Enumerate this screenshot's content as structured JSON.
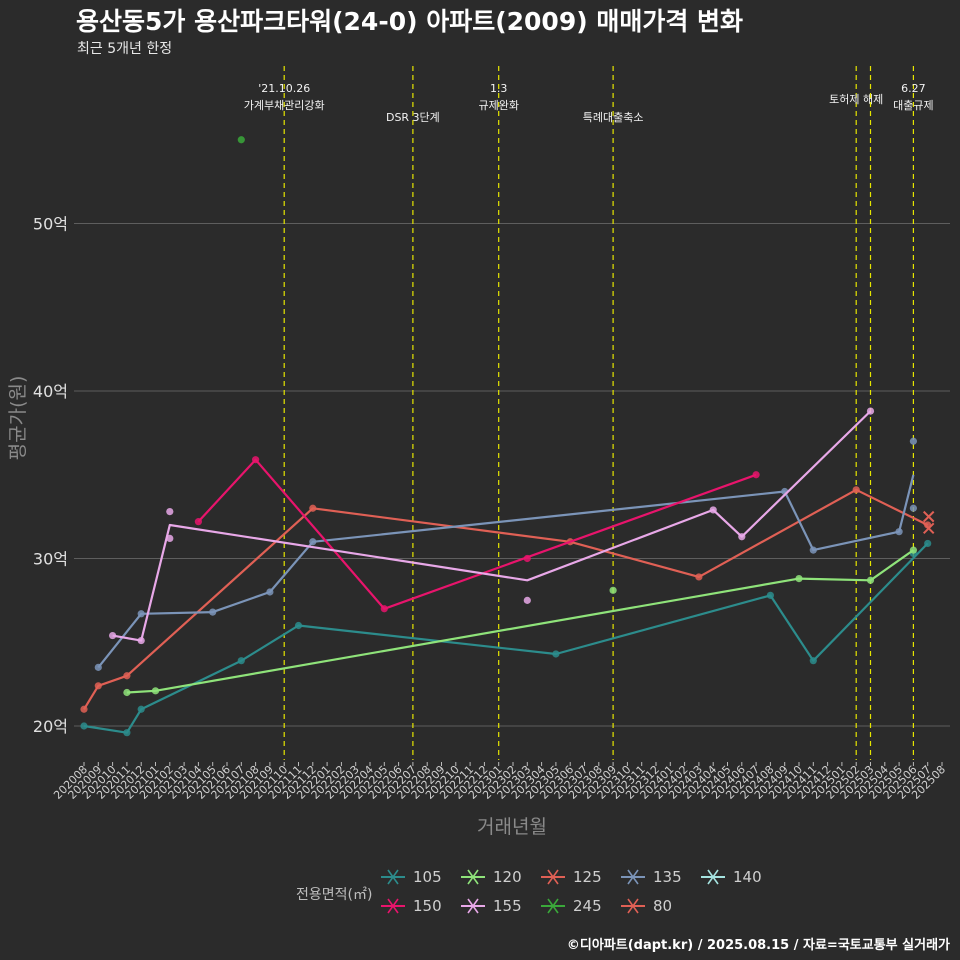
{
  "title": "용산동5가 용산파크타워(24-0) 아파트(2009) 매매가격 변화",
  "subtitle": "최근 5개년 한정",
  "caption": "©디아파트(dapt.kr) / 2025.08.15 / 자료=국토교통부 실거래가",
  "chart_data": {
    "type": "line",
    "xlabel": "거래년월",
    "ylabel": "평균가(원)",
    "x": [
      "202008",
      "202009",
      "202010",
      "202011",
      "202012",
      "202101",
      "202102",
      "202103",
      "202104",
      "202105",
      "202106",
      "202107",
      "202108",
      "202109",
      "202110",
      "202111",
      "202112",
      "202201",
      "202202",
      "202203",
      "202204",
      "202205",
      "202206",
      "202207",
      "202208",
      "202209",
      "202210",
      "202211",
      "202212",
      "202301",
      "202302",
      "202303",
      "202304",
      "202305",
      "202306",
      "202307",
      "202308",
      "202309",
      "202310",
      "202311",
      "202312",
      "202401",
      "202402",
      "202403",
      "202404",
      "202405",
      "202406",
      "202407",
      "202408",
      "202409",
      "202410",
      "202411",
      "202412",
      "202501",
      "202502",
      "202503",
      "202504",
      "202505",
      "202506",
      "202507",
      "202508"
    ],
    "ylim": [
      18,
      58
    ],
    "yticks": [
      20,
      30,
      40,
      50
    ],
    "ytick_labels": [
      "20억",
      "30억",
      "40억",
      "50억"
    ],
    "grid": "horizontal",
    "legend_position": "bottom",
    "legend_title": "전용면적(㎡)",
    "events": [
      {
        "x": "202110",
        "lines": [
          "'21.10.26",
          "가계부채관리강화"
        ]
      },
      {
        "x": "202207",
        "lines": [
          "DSR 3단계"
        ]
      },
      {
        "x": "202301",
        "lines": [
          "1.3",
          "규제완화"
        ]
      },
      {
        "x": "202309",
        "lines": [
          "특례대출축소"
        ]
      },
      {
        "x": "202502",
        "lines": [
          "토허제 해제"
        ]
      },
      {
        "x": "202503",
        "lines": [
          ""
        ]
      },
      {
        "x": "202506",
        "lines": [
          "6.27",
          "대출규제"
        ]
      }
    ],
    "series": [
      {
        "name": "105",
        "color": "#2c8c8c",
        "line": [
          [
            "202008",
            20.0
          ],
          [
            "202011",
            19.6
          ],
          [
            "202012",
            21.0
          ],
          [
            "202107",
            23.9
          ],
          [
            "202111",
            26.0
          ],
          [
            "202305",
            24.3
          ],
          [
            "202408",
            27.8
          ],
          [
            "202411",
            23.9
          ],
          [
            "202507",
            30.9
          ]
        ],
        "points": [
          [
            "202008",
            20.0
          ],
          [
            "202011",
            19.6
          ],
          [
            "202012",
            21.0
          ],
          [
            "202107",
            23.9
          ],
          [
            "202111",
            26.0
          ],
          [
            "202305",
            24.3
          ],
          [
            "202408",
            27.8
          ],
          [
            "202411",
            23.9
          ],
          [
            "202506",
            30.3
          ],
          [
            "202507",
            30.9
          ]
        ]
      },
      {
        "name": "120",
        "color": "#8fe37a",
        "line": [
          [
            "202011",
            22.0
          ],
          [
            "202101",
            22.1
          ],
          [
            "202410",
            28.8
          ],
          [
            "202503",
            28.7
          ],
          [
            "202506",
            30.5
          ]
        ],
        "points": [
          [
            "202011",
            22.0
          ],
          [
            "202101",
            22.1
          ],
          [
            "202309",
            28.1
          ],
          [
            "202410",
            28.8
          ],
          [
            "202503",
            28.7
          ],
          [
            "202506",
            30.5
          ]
        ]
      },
      {
        "name": "125",
        "color": "#e06055",
        "line": [
          [
            "202008",
            21.0
          ],
          [
            "202009",
            22.4
          ],
          [
            "202011",
            23.0
          ],
          [
            "202112",
            33.0
          ],
          [
            "202306",
            31.0
          ],
          [
            "202403",
            28.9
          ],
          [
            "202502",
            34.1
          ],
          [
            "202507",
            32.0
          ]
        ],
        "points": [
          [
            "202008",
            21.0
          ],
          [
            "202009",
            22.4
          ],
          [
            "202011",
            23.0
          ],
          [
            "202112",
            33.0
          ],
          [
            "202306",
            31.0
          ],
          [
            "202403",
            28.9
          ],
          [
            "202502",
            34.1
          ],
          [
            "202507",
            32.0
          ]
        ]
      },
      {
        "name": "135",
        "color": "#7b94b8",
        "line": [
          [
            "202009",
            23.5
          ],
          [
            "202012",
            26.7
          ],
          [
            "202105",
            26.8
          ],
          [
            "202109",
            28.0
          ],
          [
            "202112",
            31.0
          ],
          [
            "202409",
            34.0
          ],
          [
            "202411",
            30.5
          ],
          [
            "202505",
            31.6
          ],
          [
            "202506",
            35.0
          ]
        ],
        "points": [
          [
            "202009",
            23.5
          ],
          [
            "202012",
            26.7
          ],
          [
            "202105",
            26.8
          ],
          [
            "202109",
            28.0
          ],
          [
            "202112",
            31.0
          ],
          [
            "202409",
            34.0
          ],
          [
            "202411",
            30.5
          ],
          [
            "202505",
            31.6
          ],
          [
            "202506",
            37.0
          ],
          [
            "202506",
            33.0
          ]
        ]
      },
      {
        "name": "140",
        "color": "#a5e3e0",
        "line": [],
        "points": []
      },
      {
        "name": "150",
        "color": "#e8146c",
        "line": [
          [
            "202104",
            32.2
          ],
          [
            "202108",
            35.9
          ],
          [
            "202205",
            27.0
          ],
          [
            "202407",
            35.0
          ]
        ],
        "points": [
          [
            "202104",
            32.2
          ],
          [
            "202108",
            35.9
          ],
          [
            "202205",
            27.0
          ],
          [
            "202303",
            30.0
          ],
          [
            "202407",
            35.0
          ]
        ]
      },
      {
        "name": "155",
        "color": "#e8a8e8",
        "line": [
          [
            "202010",
            25.4
          ],
          [
            "202012",
            25.1
          ],
          [
            "202102",
            32.0
          ],
          [
            "202303",
            28.7
          ],
          [
            "202404",
            32.9
          ],
          [
            "202406",
            31.3
          ],
          [
            "202503",
            38.8
          ]
        ],
        "points": [
          [
            "202010",
            25.4
          ],
          [
            "202012",
            25.1
          ],
          [
            "202102",
            32.8
          ],
          [
            "202102",
            31.2
          ],
          [
            "202303",
            27.5
          ],
          [
            "202404",
            32.9
          ],
          [
            "202406",
            31.3
          ],
          [
            "202503",
            38.8
          ]
        ]
      },
      {
        "name": "245",
        "color": "#3aa83a",
        "line": [],
        "points": [
          [
            "202107",
            55.0
          ]
        ]
      },
      {
        "name": "80",
        "color": "#e06055",
        "line": [],
        "points": [],
        "crosses": [
          [
            "202507",
            32.5
          ],
          [
            "202507",
            31.8
          ]
        ]
      }
    ]
  }
}
